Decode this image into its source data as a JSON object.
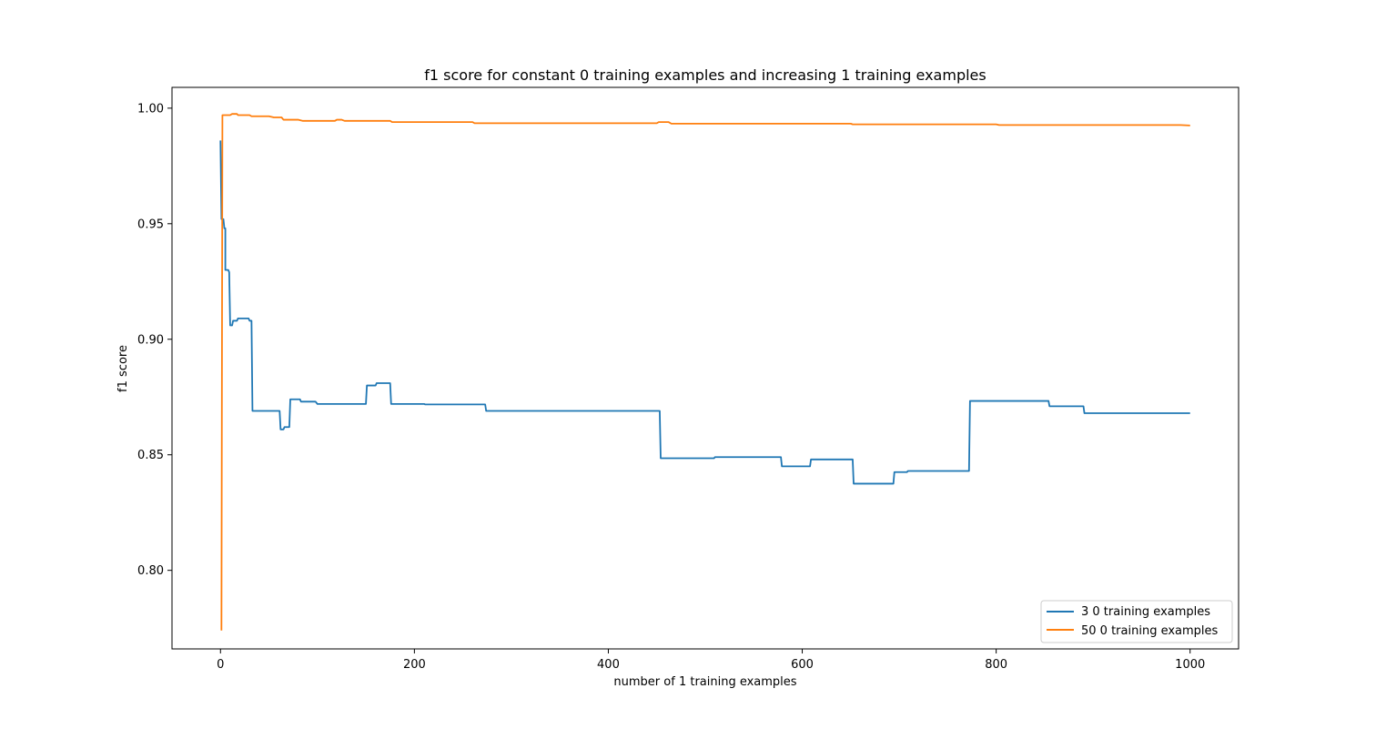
{
  "chart_data": {
    "type": "line",
    "title": "f1 score for constant 0 training examples and increasing 1 training examples",
    "xlabel": "number of 1 training examples",
    "ylabel": "f1 score",
    "xlim": [
      -50,
      1050
    ],
    "ylim": [
      0.766,
      1.009
    ],
    "xticks": [
      0,
      200,
      400,
      600,
      800,
      1000
    ],
    "xtick_labels": [
      "0",
      "200",
      "400",
      "600",
      "800",
      "1000"
    ],
    "yticks": [
      0.8,
      0.85,
      0.9,
      0.95,
      1.0
    ],
    "ytick_labels": [
      "0.80",
      "0.85",
      "0.90",
      "0.95",
      "1.00"
    ],
    "grid": false,
    "legend_position": "lower-right",
    "series": [
      {
        "name": "3 0 training examples",
        "color": "#1f77b4",
        "points": [
          [
            0,
            0.986
          ],
          [
            1,
            0.952
          ],
          [
            3,
            0.952
          ],
          [
            4,
            0.948
          ],
          [
            5,
            0.948
          ],
          [
            5,
            0.93
          ],
          [
            8,
            0.93
          ],
          [
            9,
            0.929
          ],
          [
            10,
            0.906
          ],
          [
            12,
            0.906
          ],
          [
            13,
            0.908
          ],
          [
            17,
            0.908
          ],
          [
            18,
            0.909
          ],
          [
            29,
            0.909
          ],
          [
            30,
            0.908
          ],
          [
            32,
            0.908
          ],
          [
            33,
            0.869
          ],
          [
            61,
            0.869
          ],
          [
            62,
            0.861
          ],
          [
            65,
            0.861
          ],
          [
            66,
            0.862
          ],
          [
            71,
            0.862
          ],
          [
            72,
            0.874
          ],
          [
            82,
            0.874
          ],
          [
            83,
            0.873
          ],
          [
            98,
            0.873
          ],
          [
            100,
            0.872
          ],
          [
            150,
            0.872
          ],
          [
            151,
            0.88
          ],
          [
            160,
            0.88
          ],
          [
            161,
            0.881
          ],
          [
            175,
            0.881
          ],
          [
            176,
            0.872
          ],
          [
            210,
            0.872
          ],
          [
            211,
            0.8718
          ],
          [
            273,
            0.8718
          ],
          [
            274,
            0.869
          ],
          [
            453,
            0.869
          ],
          [
            454,
            0.8485
          ],
          [
            509,
            0.8485
          ],
          [
            510,
            0.849
          ],
          [
            578,
            0.849
          ],
          [
            579,
            0.845
          ],
          [
            608,
            0.845
          ],
          [
            609,
            0.848
          ],
          [
            652,
            0.848
          ],
          [
            653,
            0.8375
          ],
          [
            694,
            0.8375
          ],
          [
            695,
            0.8425
          ],
          [
            708,
            0.8425
          ],
          [
            709,
            0.843
          ],
          [
            772,
            0.843
          ],
          [
            773,
            0.8733
          ],
          [
            854,
            0.8733
          ],
          [
            855,
            0.871
          ],
          [
            890,
            0.871
          ],
          [
            891,
            0.868
          ],
          [
            1000,
            0.868
          ]
        ]
      },
      {
        "name": "50 0 training examples",
        "color": "#ff7f0e",
        "points": [
          [
            1,
            0.774
          ],
          [
            2,
            0.997
          ],
          [
            10,
            0.997
          ],
          [
            12,
            0.9975
          ],
          [
            17,
            0.9975
          ],
          [
            18,
            0.997
          ],
          [
            30,
            0.997
          ],
          [
            32,
            0.9965
          ],
          [
            50,
            0.9965
          ],
          [
            55,
            0.996
          ],
          [
            63,
            0.996
          ],
          [
            65,
            0.995
          ],
          [
            80,
            0.995
          ],
          [
            85,
            0.9945
          ],
          [
            118,
            0.9945
          ],
          [
            120,
            0.995
          ],
          [
            125,
            0.995
          ],
          [
            128,
            0.9945
          ],
          [
            175,
            0.9945
          ],
          [
            177,
            0.994
          ],
          [
            260,
            0.994
          ],
          [
            262,
            0.9935
          ],
          [
            450,
            0.9935
          ],
          [
            452,
            0.994
          ],
          [
            462,
            0.994
          ],
          [
            465,
            0.9933
          ],
          [
            650,
            0.9933
          ],
          [
            652,
            0.993
          ],
          [
            800,
            0.993
          ],
          [
            803,
            0.9927
          ],
          [
            990,
            0.9927
          ],
          [
            1000,
            0.9925
          ]
        ]
      }
    ]
  }
}
